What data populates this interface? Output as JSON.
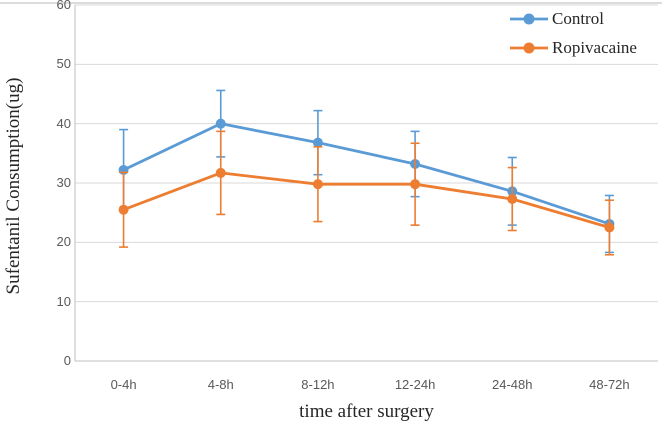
{
  "figure": {
    "background": "#ffffff",
    "top_border_color": "#dcdcdc"
  },
  "chart_data": {
    "type": "line",
    "title": "",
    "xlabel": "time after surgery",
    "ylabel": "Sufentanil Consumption(ug)",
    "categories": [
      "0-4h",
      "4-8h",
      "8-12h",
      "12-24h",
      "24-48h",
      "48-72h"
    ],
    "y_axis": {
      "min": 0,
      "max": 60,
      "step": 10,
      "ticks": [
        0,
        10,
        20,
        30,
        40,
        50,
        60
      ]
    },
    "grid": true,
    "legend_position": "top-right",
    "error_bars": true,
    "series": [
      {
        "name": "Control",
        "color": "#5B9BD5",
        "marker": "circle",
        "values": [
          32.2,
          40.0,
          36.8,
          33.2,
          28.6,
          23.1
        ],
        "error": [
          6.8,
          5.6,
          5.4,
          5.5,
          5.7,
          4.8
        ]
      },
      {
        "name": "Ropivacaine",
        "color": "#ED7D31",
        "marker": "circle",
        "values": [
          25.5,
          31.7,
          29.8,
          29.8,
          27.3,
          22.5
        ],
        "error": [
          6.3,
          7.0,
          6.3,
          6.9,
          5.3,
          4.6
        ]
      }
    ],
    "colors": {
      "gridline": "#D9D9D9",
      "axis_line": "#BFBFBF",
      "tick_text": "#595959",
      "title_text": "#262626"
    }
  }
}
